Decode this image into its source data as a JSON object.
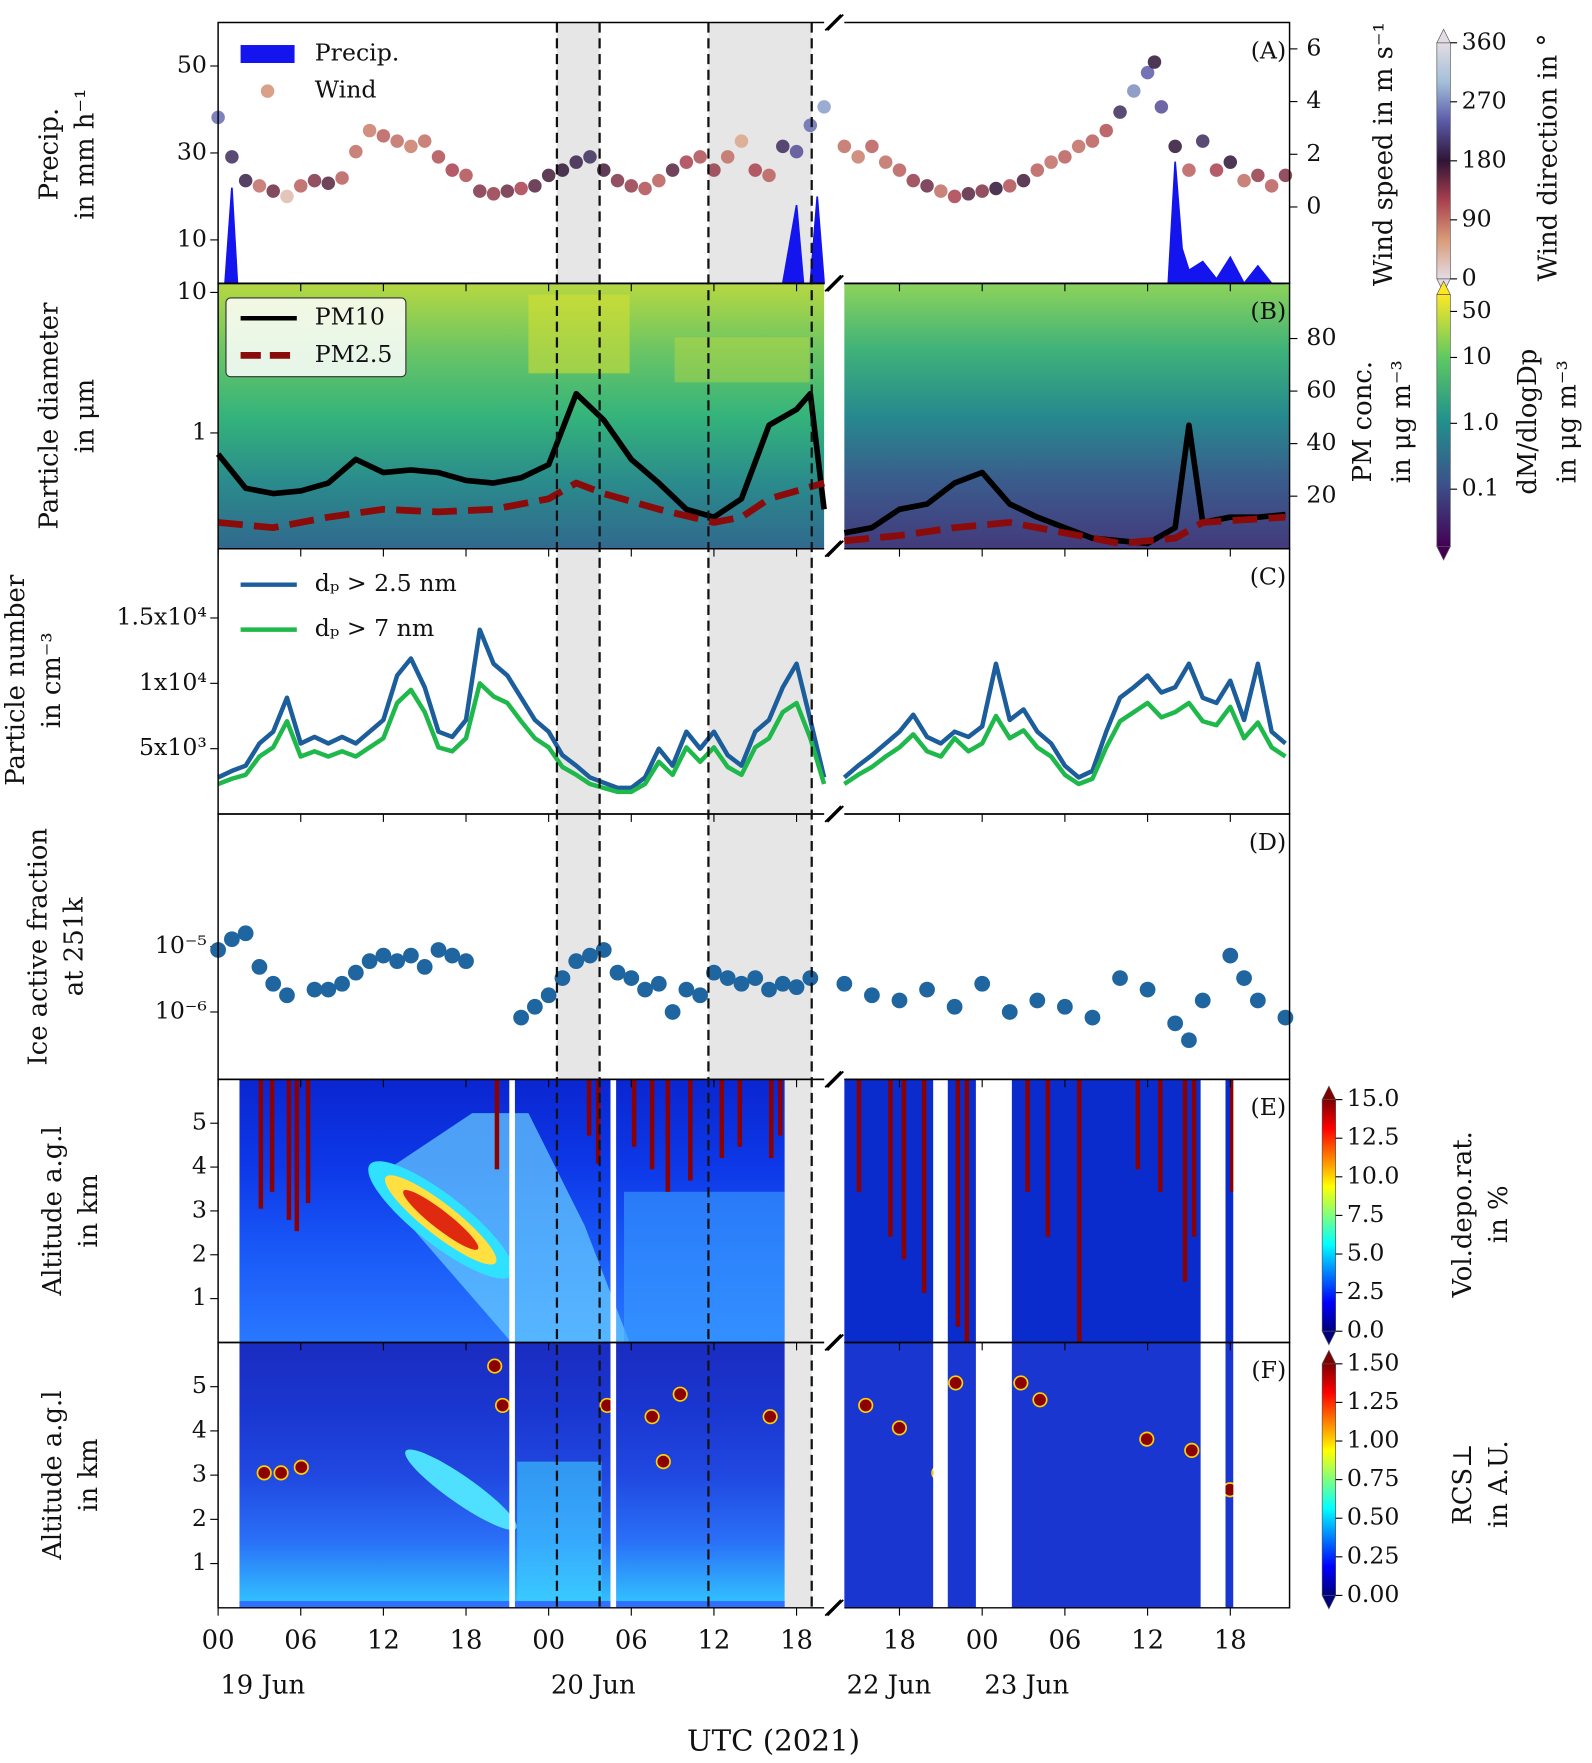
{
  "x_axis": {
    "segments": [
      [
        0,
        44
      ],
      [
        86,
        118.3
      ]
    ],
    "ticks": [
      {
        "value": 0,
        "label": "00"
      },
      {
        "value": 6,
        "label": "06"
      },
      12,
      18,
      {
        "value": 24,
        "label": "00"
      },
      {
        "value": 30,
        "label": "06"
      },
      {
        "value": 36,
        "label": "12"
      },
      {
        "value": 42,
        "label": "18"
      },
      {
        "value": 90,
        "label": "18"
      },
      {
        "value": 96,
        "label": "00"
      },
      {
        "value": 102,
        "label": "06"
      },
      {
        "value": 108,
        "label": "12"
      },
      {
        "value": 114,
        "label": "18"
      }
    ],
    "date_labels": [
      {
        "value": 0,
        "label": "19 Jun"
      },
      {
        "value": 24,
        "label": "20 Jun"
      },
      {
        "value": 86,
        "label": "22 Jun"
      },
      {
        "value": 96,
        "label": "23 Jun"
      }
    ],
    "label": "UTC (2021)"
  },
  "shaded_intervals": [
    [
      24.6,
      27.7
    ],
    [
      35.6,
      43.1
    ]
  ],
  "chart_data": [
    {
      "type": "combo",
      "label": "(A)",
      "ylabel": [
        "Precip.",
        "in mm h⁻¹"
      ],
      "ylim": [
        0,
        60
      ],
      "yticks": [
        10,
        30,
        50
      ],
      "y2label": "Wind speed in m s⁻¹",
      "y2lim": [
        -2.9,
        7
      ],
      "y2ticks": [
        0,
        2,
        4,
        6
      ],
      "legend": "upper left",
      "series": [
        {
          "name": "Precip.",
          "color": "#1414ee",
          "mark": "area",
          "x": [
            0,
            0.5,
            1,
            1.4,
            41,
            42,
            42.5,
            43,
            43.5,
            44,
            86,
            109.5,
            110,
            110.5,
            111,
            112,
            113,
            114,
            115,
            116,
            117,
            118
          ],
          "values": [
            0,
            0,
            22,
            0,
            0,
            18,
            0,
            0,
            20,
            0,
            0,
            0,
            28,
            8,
            3,
            5,
            1,
            6,
            0,
            4,
            0,
            0
          ]
        },
        {
          "name": "Wind",
          "color": "#d9a08a",
          "mark": "scatter",
          "axis": "y2",
          "x": [
            0,
            1,
            2,
            3,
            4,
            5,
            6,
            7,
            8,
            9,
            10,
            11,
            12,
            13,
            14,
            15,
            16,
            17,
            18,
            19,
            20,
            21,
            22,
            23,
            24,
            25,
            26,
            27,
            28,
            29,
            30,
            31,
            32,
            33,
            34,
            35,
            36,
            37,
            38,
            39,
            40,
            41,
            42,
            43,
            44,
            86,
            87,
            88,
            89,
            90,
            91,
            92,
            93,
            94,
            95,
            96,
            97,
            98,
            99,
            100,
            101,
            102,
            103,
            104,
            105,
            106,
            107,
            108,
            108.5,
            109,
            110,
            111,
            112,
            113,
            114,
            115,
            116,
            117,
            118
          ],
          "values": [
            3.4,
            1.9,
            1.0,
            0.8,
            0.6,
            0.4,
            0.8,
            1.0,
            0.9,
            1.1,
            2.1,
            2.9,
            2.7,
            2.5,
            2.3,
            2.5,
            1.9,
            1.4,
            1.2,
            0.6,
            0.5,
            0.6,
            0.7,
            0.8,
            1.2,
            1.4,
            1.7,
            1.9,
            1.4,
            1.0,
            0.8,
            0.7,
            1.0,
            1.4,
            1.7,
            1.9,
            1.4,
            1.9,
            2.5,
            1.4,
            1.2,
            2.3,
            2.1,
            3.1,
            3.8,
            2.3,
            1.9,
            2.3,
            1.7,
            1.4,
            1.0,
            0.8,
            0.6,
            0.4,
            0.5,
            0.6,
            0.7,
            0.8,
            1.0,
            1.4,
            1.7,
            1.9,
            2.3,
            2.5,
            2.9,
            3.6,
            4.4,
            5.1,
            5.5,
            3.8,
            2.3,
            1.4,
            2.5,
            1.4,
            1.7,
            1.0,
            1.2,
            0.8,
            1.2
          ],
          "directions": [
            250,
            200,
            190,
            90,
            150,
            30,
            100,
            140,
            160,
            100,
            90,
            80,
            100,
            90,
            80,
            90,
            110,
            120,
            110,
            140,
            130,
            150,
            120,
            160,
            170,
            180,
            190,
            200,
            170,
            140,
            130,
            110,
            100,
            160,
            120,
            110,
            130,
            90,
            50,
            120,
            100,
            200,
            230,
            250,
            280,
            90,
            80,
            100,
            90,
            100,
            130,
            150,
            90,
            120,
            160,
            140,
            180,
            110,
            170,
            100,
            90,
            100,
            90,
            100,
            110,
            200,
            270,
            240,
            180,
            230,
            180,
            100,
            200,
            120,
            180,
            90,
            130,
            100,
            140
          ]
        }
      ],
      "colorbar": {
        "label": "Wind direction in °",
        "lim": [
          0,
          360
        ],
        "ticks": [
          0,
          90,
          180,
          270,
          360
        ],
        "colormap": [
          "#e4dce4",
          "#d99a78",
          "#a8404e",
          "#2f1436",
          "#5a5aa8",
          "#a3bfd9",
          "#e4dce4"
        ]
      }
    },
    {
      "type": "line",
      "label": "(B)",
      "ylabel": [
        "Particle diameter",
        "in μm"
      ],
      "log": true,
      "ylim": [
        0.15,
        11.6
      ],
      "yticks": [
        1,
        10
      ],
      "y2label": [
        "PM conc.",
        "in μg m⁻³"
      ],
      "y2lim": [
        0,
        101
      ],
      "y2ticks": [
        20,
        40,
        60,
        80
      ],
      "legend": "upper left",
      "series": [
        {
          "name": "PM10",
          "color": "#000000",
          "axis": "y2",
          "x": [
            0,
            2,
            4,
            6,
            8,
            10,
            12,
            14,
            16,
            18,
            20,
            22,
            24,
            26,
            28,
            30,
            32,
            34,
            36,
            38,
            40,
            42,
            43,
            44,
            86,
            88,
            90,
            92,
            94,
            96,
            98,
            100,
            102,
            104,
            106,
            108,
            110,
            111,
            112,
            114,
            116,
            118
          ],
          "values": [
            36,
            23,
            21,
            22,
            25,
            34,
            29,
            30,
            29,
            26,
            25,
            27,
            32,
            59,
            49,
            34,
            25,
            15,
            12,
            19,
            47,
            53,
            59,
            15,
            6,
            8,
            15,
            17,
            25,
            29,
            17,
            12,
            8,
            4,
            3,
            2,
            8,
            47,
            10,
            12,
            12,
            13
          ]
        },
        {
          "name": "PM2.5",
          "color": "#8b0a0a",
          "axis": "y2",
          "dash": true,
          "x": [
            0,
            4,
            8,
            12,
            16,
            20,
            24,
            26,
            28,
            32,
            36,
            38,
            40,
            44,
            86,
            90,
            94,
            98,
            102,
            106,
            110,
            112,
            118
          ],
          "values": [
            10,
            8,
            12,
            15,
            14,
            15,
            19,
            25,
            21,
            15,
            10,
            12,
            19,
            25,
            3,
            5,
            8,
            10,
            6,
            2,
            4,
            10,
            12
          ]
        }
      ],
      "colorbar": {
        "label": [
          "dM/dlogDp",
          "in μg m⁻³"
        ],
        "log": true,
        "lim": [
          0.0135,
          90
        ],
        "ticks": [
          0.1,
          {
            "value": 1,
            "label": "1.0"
          },
          10,
          50
        ],
        "colormap": [
          "#440154",
          "#3b528b",
          "#21918c",
          "#5ec962",
          "#fde725"
        ]
      }
    },
    {
      "type": "line",
      "label": "(C)",
      "ylabel": [
        "Particle number",
        "in cm⁻³"
      ],
      "ylim": [
        0,
        20300
      ],
      "yticks": [
        {
          "value": 5000,
          "label": "5x10³"
        },
        {
          "value": 10000,
          "label": "1x10⁴"
        },
        {
          "value": 15000,
          "label": "1.5x10⁴"
        }
      ],
      "legend": "upper left",
      "x": [
        0,
        1,
        2,
        3,
        4,
        5,
        6,
        7,
        8,
        9,
        10,
        11,
        12,
        13,
        14,
        15,
        16,
        17,
        18,
        19,
        20,
        21,
        22,
        23,
        24,
        25,
        26,
        27,
        28,
        29,
        30,
        31,
        32,
        33,
        34,
        35,
        36,
        37,
        38,
        39,
        40,
        41,
        42,
        43,
        44,
        86,
        87,
        88,
        89,
        90,
        91,
        92,
        93,
        94,
        95,
        96,
        97,
        98,
        99,
        100,
        101,
        102,
        103,
        104,
        105,
        106,
        107,
        108,
        109,
        110,
        111,
        112,
        113,
        114,
        115,
        116,
        117,
        118
      ],
      "series": [
        {
          "name": "dₚ > 2.5 nm",
          "color": "#1c5d9c",
          "values": [
            2800,
            3300,
            3700,
            5400,
            6300,
            8900,
            5400,
            5900,
            5400,
            5900,
            5400,
            6300,
            7200,
            10600,
            11900,
            9700,
            6300,
            5900,
            7200,
            14100,
            11500,
            10600,
            8900,
            7200,
            6300,
            4500,
            3700,
            2800,
            2400,
            2000,
            2000,
            2800,
            5000,
            3700,
            6300,
            5000,
            6300,
            4500,
            3700,
            6300,
            7200,
            9700,
            11500,
            7200,
            2800,
            2800,
            3700,
            4500,
            5400,
            6300,
            7600,
            5900,
            5400,
            6300,
            5900,
            6700,
            11500,
            7200,
            8000,
            6300,
            5400,
            3700,
            2800,
            3300,
            6300,
            8900,
            9700,
            10600,
            9300,
            9700,
            11500,
            8900,
            8500,
            10200,
            7200,
            11500,
            6300,
            5400
          ]
        },
        {
          "name": "dₚ > 7 nm",
          "color": "#1fb84a",
          "values": [
            2300,
            2700,
            3000,
            4400,
            5100,
            7100,
            4400,
            4800,
            4400,
            4800,
            4400,
            5100,
            5800,
            8500,
            9500,
            7800,
            5100,
            4800,
            5800,
            10000,
            9000,
            8500,
            7100,
            5800,
            5100,
            3600,
            3000,
            2300,
            2000,
            1700,
            1700,
            2300,
            4000,
            3000,
            5100,
            4000,
            5100,
            3600,
            3000,
            5100,
            5800,
            7800,
            8500,
            5800,
            2300,
            2300,
            3000,
            3600,
            4400,
            5100,
            6100,
            4800,
            4400,
            5800,
            4800,
            5400,
            7500,
            5800,
            6400,
            5100,
            4400,
            3000,
            2300,
            2700,
            5100,
            7100,
            7800,
            8500,
            7400,
            7800,
            8500,
            7100,
            6800,
            8200,
            5800,
            7000,
            5100,
            4400
          ]
        }
      ]
    },
    {
      "type": "scatter",
      "label": "(D)",
      "ylabel": [
        "Ice active fraction",
        "at 251k"
      ],
      "log": true,
      "ylim": [
        9.3e-08,
        0.00107
      ],
      "yticks": [
        {
          "value": 1e-05,
          "label": "10⁻⁵"
        },
        {
          "value": 1e-06,
          "label": "10⁻⁶"
        }
      ],
      "color": "#1f65a0",
      "x": [
        0,
        1,
        2,
        3,
        4,
        5,
        7,
        8,
        9,
        10,
        11,
        12,
        13,
        14,
        15,
        16,
        17,
        18,
        22,
        23,
        24,
        25,
        26,
        27,
        28,
        29,
        30,
        31,
        32,
        33,
        34,
        35,
        36,
        37,
        38,
        39,
        40,
        41,
        42,
        43,
        86,
        88,
        90,
        92,
        94,
        96,
        98,
        100,
        102,
        104,
        106,
        108,
        110,
        111,
        112,
        114,
        115,
        116,
        118
      ],
      "values": [
        8.9e-06,
        1.3e-05,
        1.6e-05,
        4.9e-06,
        2.7e-06,
        1.8e-06,
        2.2e-06,
        2.2e-06,
        2.7e-06,
        4e-06,
        6e-06,
        7.3e-06,
        6e-06,
        7.3e-06,
        4.9e-06,
        8.9e-06,
        7.3e-06,
        6e-06,
        8.2e-07,
        1.2e-06,
        1.8e-06,
        3.3e-06,
        6e-06,
        7.3e-06,
        8.9e-06,
        4e-06,
        3.3e-06,
        2.2e-06,
        2.7e-06,
        1e-06,
        2.2e-06,
        1.8e-06,
        4e-06,
        3.3e-06,
        2.7e-06,
        3.3e-06,
        2.2e-06,
        2.7e-06,
        2.4e-06,
        3.3e-06,
        2.7e-06,
        1.8e-06,
        1.5e-06,
        2.2e-06,
        1.2e-06,
        2.7e-06,
        1e-06,
        1.5e-06,
        1.2e-06,
        8.2e-07,
        3.3e-06,
        2.2e-06,
        6.7e-07,
        3.7e-07,
        1.5e-06,
        7.3e-06,
        3.3e-06,
        1.5e-06,
        8.2e-07
      ]
    },
    {
      "type": "heatmap",
      "label": "(E)",
      "ylabel": [
        "Altitude a.g.l",
        "in km"
      ],
      "ylim": [
        0,
        6
      ],
      "yticks": [
        1,
        2,
        3,
        4,
        5
      ],
      "colorbar": {
        "label": [
          "Vol.depo.rat.",
          "in %"
        ],
        "lim": [
          0,
          15
        ],
        "ticks": [
          {
            "value": 0,
            "label": "0.0"
          },
          2.5,
          {
            "value": 5,
            "label": "5.0"
          },
          7.5,
          {
            "value": 10,
            "label": "10.0"
          },
          12.5,
          {
            "value": 15,
            "label": "15.0"
          }
        ],
        "colormap": [
          "#00007f",
          "#0000ff",
          "#007fff",
          "#00ffff",
          "#7fff7f",
          "#ffff00",
          "#ff7f00",
          "#ff0000",
          "#7f0000"
        ]
      }
    },
    {
      "type": "heatmap",
      "label": "(F)",
      "ylabel": [
        "Altitude a.g.l",
        "in km"
      ],
      "ylim": [
        0,
        6
      ],
      "yticks": [
        1,
        2,
        3,
        4,
        5
      ],
      "colorbar": {
        "label": [
          "RCS⊥",
          "in A.U."
        ],
        "lim": [
          0,
          1.5
        ],
        "ticks": [
          {
            "value": 0,
            "label": "0.00"
          },
          0.25,
          {
            "value": 0.5,
            "label": "0.50"
          },
          0.75,
          {
            "value": 1,
            "label": "1.00"
          },
          1.25,
          {
            "value": 1.5,
            "label": "1.50"
          }
        ],
        "colormap": [
          "#00007f",
          "#0000ff",
          "#007fff",
          "#00ffff",
          "#7fff7f",
          "#ffff00",
          "#ff7f00",
          "#ff0000",
          "#7f0000"
        ]
      }
    }
  ]
}
